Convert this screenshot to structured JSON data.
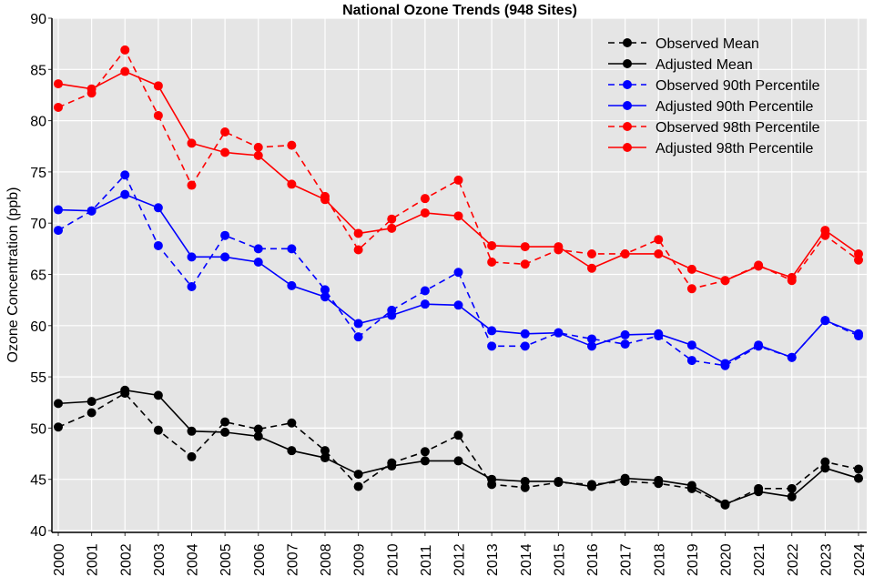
{
  "chart_data": {
    "type": "line",
    "title": "National Ozone Trends (948 Sites)",
    "xlabel": "",
    "ylabel": "Ozone Concentration (ppb)",
    "ylim": [
      40,
      90
    ],
    "yticks": [
      40,
      45,
      50,
      55,
      60,
      65,
      70,
      75,
      80,
      85,
      90
    ],
    "grid": true,
    "legend_position": "top-right",
    "x": [
      2000,
      2001,
      2002,
      2003,
      2004,
      2005,
      2006,
      2007,
      2008,
      2009,
      2010,
      2011,
      2012,
      2013,
      2014,
      2015,
      2016,
      2017,
      2018,
      2019,
      2020,
      2021,
      2022,
      2023,
      2024
    ],
    "series": [
      {
        "name": "Observed Mean",
        "color": "#000000",
        "dash": true,
        "values": [
          50.1,
          51.5,
          53.4,
          49.8,
          47.2,
          50.6,
          49.9,
          50.5,
          47.8,
          44.3,
          46.6,
          47.7,
          49.3,
          44.5,
          44.2,
          44.7,
          44.5,
          44.8,
          44.6,
          44.1,
          42.5,
          44.1,
          44.1,
          46.7,
          46.0
        ]
      },
      {
        "name": "Adjusted Mean",
        "color": "#000000",
        "dash": false,
        "values": [
          52.4,
          52.6,
          53.7,
          53.2,
          49.7,
          49.6,
          49.2,
          47.8,
          47.1,
          45.5,
          46.3,
          46.8,
          46.8,
          45.0,
          44.8,
          44.8,
          44.3,
          45.1,
          44.9,
          44.4,
          42.6,
          43.8,
          43.3,
          46.1,
          45.1
        ]
      },
      {
        "name": "Observed 90th Percentile",
        "color": "#0000ff",
        "dash": true,
        "values": [
          69.3,
          71.2,
          74.7,
          67.8,
          63.8,
          68.8,
          67.5,
          67.5,
          63.5,
          58.9,
          61.5,
          63.4,
          65.2,
          58.0,
          58.0,
          59.3,
          58.7,
          58.2,
          59.0,
          56.6,
          56.1,
          58.0,
          56.9,
          60.5,
          59.0
        ]
      },
      {
        "name": "Adjusted 90th Percentile",
        "color": "#0000ff",
        "dash": false,
        "values": [
          71.3,
          71.2,
          72.8,
          71.5,
          66.7,
          66.7,
          66.2,
          63.9,
          62.8,
          60.2,
          61.0,
          62.1,
          62.0,
          59.5,
          59.2,
          59.3,
          58.0,
          59.1,
          59.2,
          58.1,
          56.3,
          58.1,
          56.9,
          60.5,
          59.2
        ]
      },
      {
        "name": "Observed 98th Percentile",
        "color": "#ff0000",
        "dash": true,
        "values": [
          81.3,
          82.7,
          86.9,
          80.5,
          73.7,
          78.9,
          77.4,
          77.6,
          72.6,
          67.4,
          70.4,
          72.4,
          74.2,
          66.2,
          66.0,
          67.4,
          67.0,
          67.0,
          68.4,
          63.6,
          64.4,
          65.9,
          64.4,
          68.8,
          66.4
        ]
      },
      {
        "name": "Adjusted 98th Percentile",
        "color": "#ff0000",
        "dash": false,
        "values": [
          83.6,
          83.1,
          84.8,
          83.4,
          77.8,
          76.9,
          76.6,
          73.8,
          72.3,
          69.0,
          69.5,
          71.0,
          70.7,
          67.8,
          67.7,
          67.7,
          65.6,
          67.0,
          67.0,
          65.5,
          64.4,
          65.8,
          64.7,
          69.3,
          67.0
        ]
      }
    ]
  }
}
